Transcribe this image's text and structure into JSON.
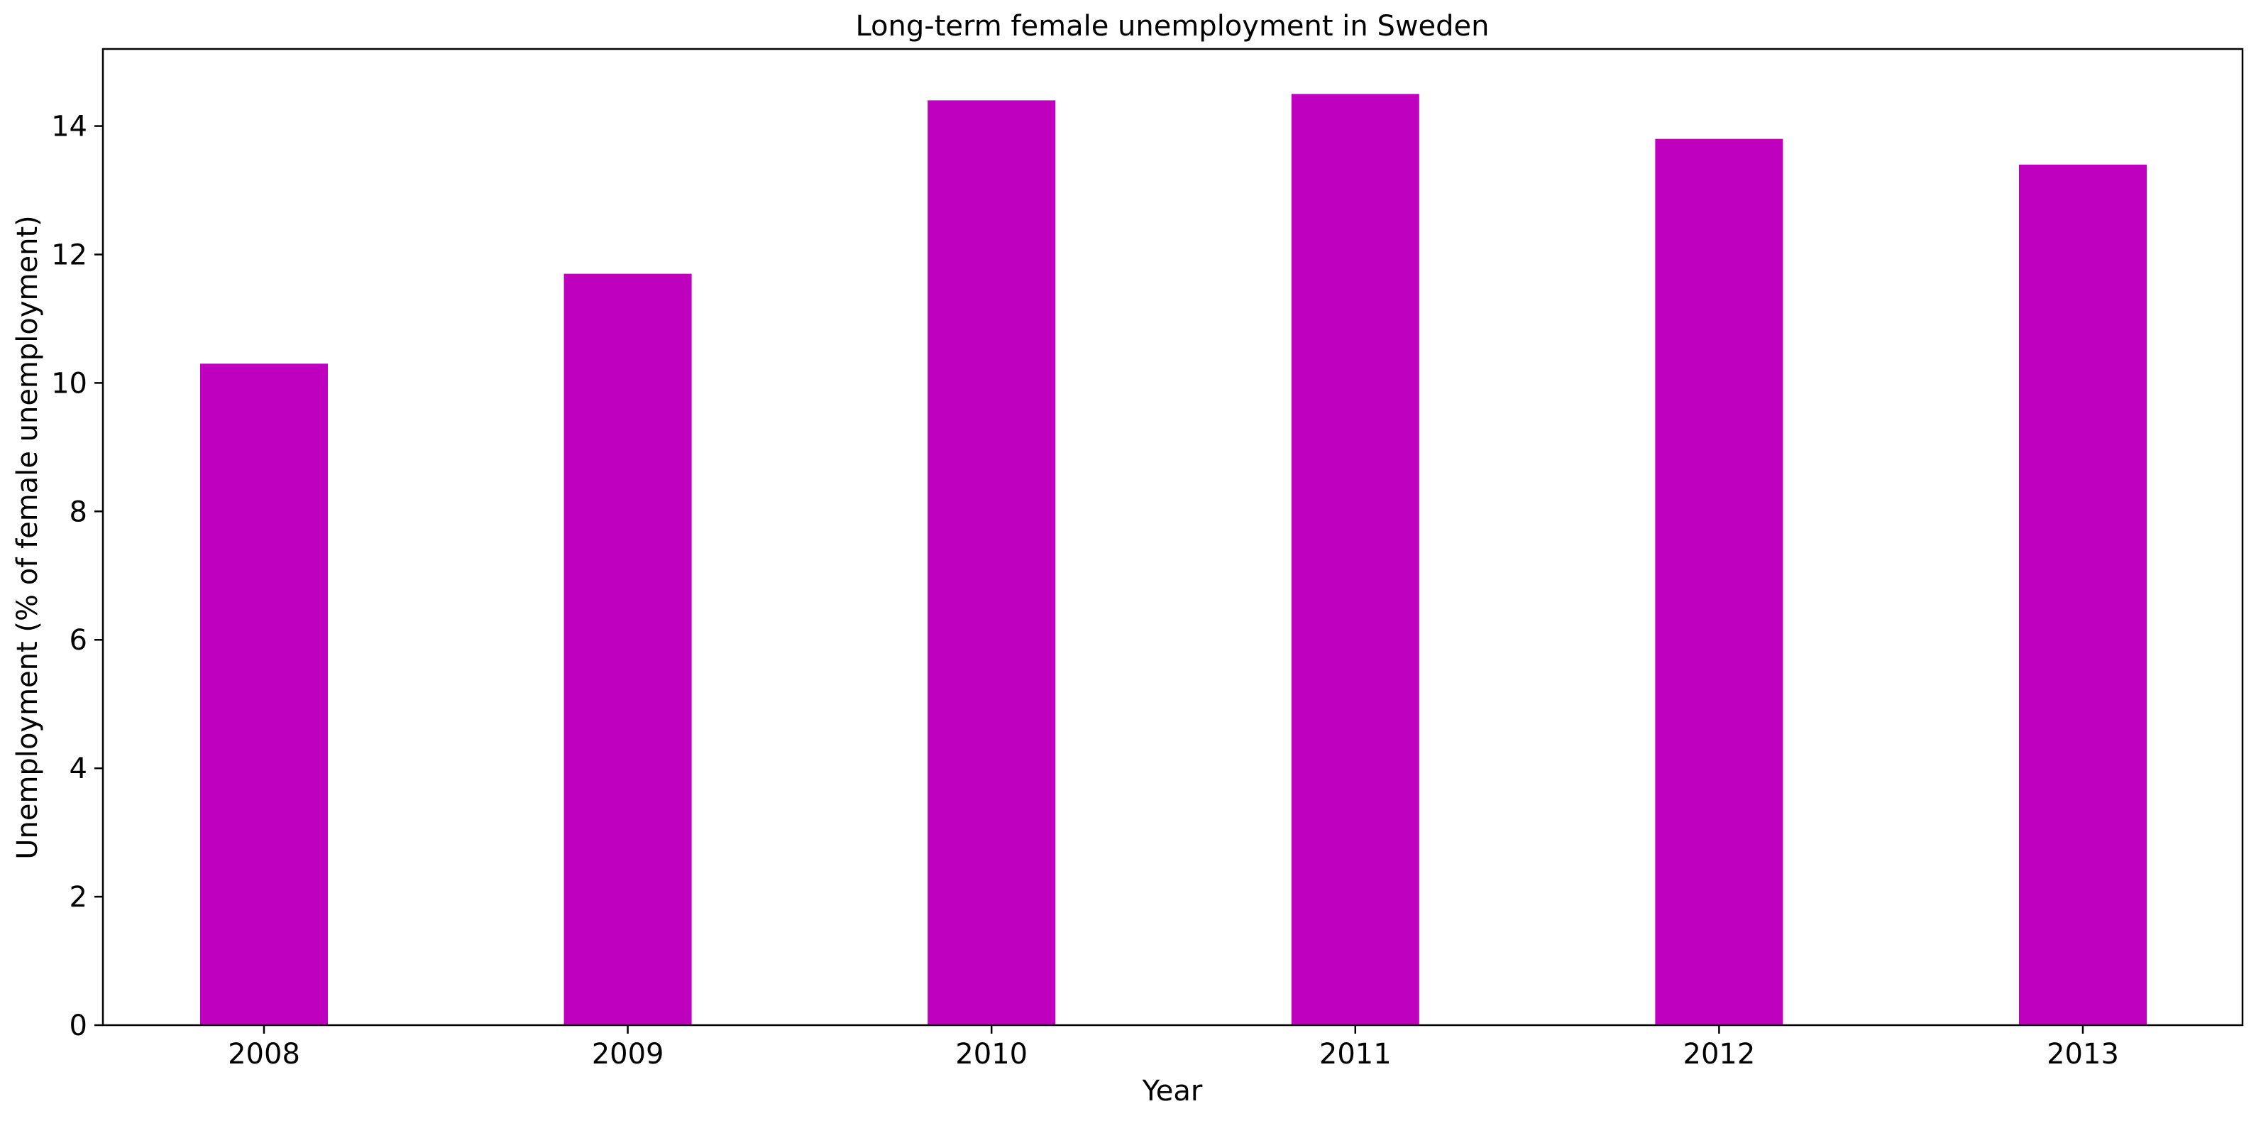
{
  "chart_data": {
    "type": "bar",
    "title": "Long-term female unemployment in Sweden",
    "xlabel": "Year",
    "ylabel": "Unemployment (% of female unemployment)",
    "categories": [
      "2008",
      "2009",
      "2010",
      "2011",
      "2012",
      "2013"
    ],
    "values": [
      10.3,
      11.7,
      14.4,
      14.5,
      13.8,
      13.4
    ],
    "ylim": [
      0,
      15.2
    ],
    "yticks": [
      0,
      2,
      4,
      6,
      8,
      10,
      12,
      14
    ],
    "grid": false,
    "legend": "none",
    "bar_color": "#bf00bf"
  }
}
